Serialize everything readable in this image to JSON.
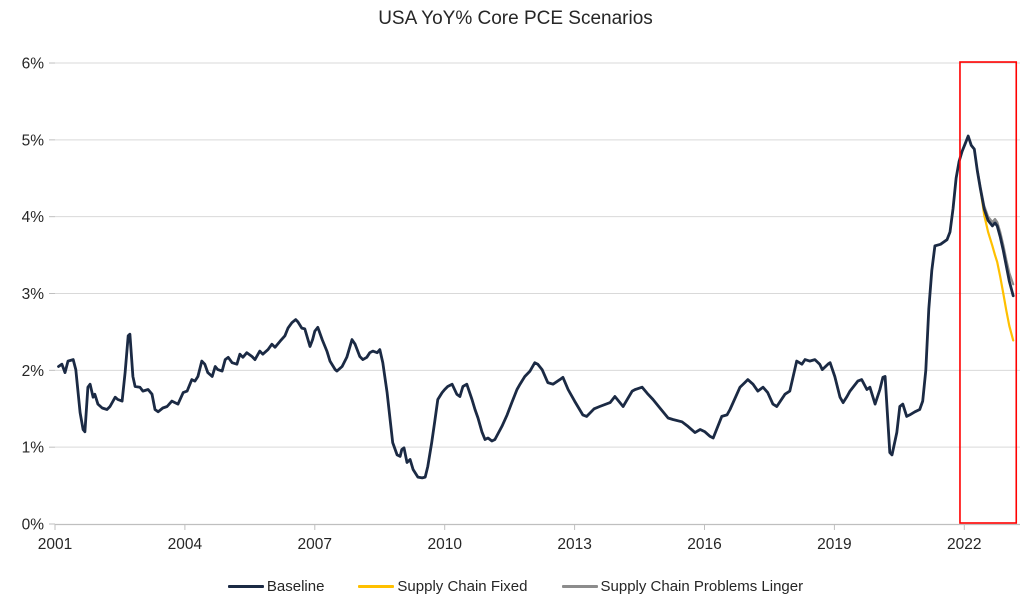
{
  "title": "USA YoY% Core PCE Scenarios",
  "colors": {
    "background": "#FFFFFF",
    "gridline": "#D9D9D9",
    "axis_line": "#BFBFBF",
    "label_text": "#262626",
    "annotation_red": "#FF0000"
  },
  "chart_data": {
    "type": "line",
    "title": "USA YoY% Core PCE Scenarios",
    "xlabel": "",
    "ylabel": "",
    "grid": "horizontal",
    "legend_position": "bottom",
    "x_axis": {
      "range": [
        2001,
        2023.3
      ],
      "ticks": [
        2001,
        2004,
        2007,
        2010,
        2013,
        2016,
        2019,
        2022
      ]
    },
    "y_axis": {
      "range": [
        0,
        6
      ],
      "tick_values": [
        0,
        1,
        2,
        3,
        4,
        5,
        6
      ],
      "tick_labels": [
        "0%",
        "1%",
        "2%",
        "3%",
        "4%",
        "5%",
        "6%"
      ]
    },
    "annotations": [
      {
        "type": "rect",
        "name": "scenario-forecast-highlight",
        "x_range": [
          2021.9,
          2023.2
        ],
        "y_range": [
          0,
          6
        ],
        "stroke": "#FF0000"
      }
    ],
    "series": [
      {
        "name": "Baseline",
        "color": "#1B2A44",
        "width": 2.8,
        "points": [
          [
            2001.08,
            2.05
          ],
          [
            2001.16,
            2.08
          ],
          [
            2001.23,
            1.97
          ],
          [
            2001.3,
            2.12
          ],
          [
            2001.42,
            2.14
          ],
          [
            2001.48,
            2.01
          ],
          [
            2001.58,
            1.45
          ],
          [
            2001.65,
            1.23
          ],
          [
            2001.69,
            1.2
          ],
          [
            2001.76,
            1.78
          ],
          [
            2001.81,
            1.82
          ],
          [
            2001.88,
            1.65
          ],
          [
            2001.92,
            1.69
          ],
          [
            2001.99,
            1.56
          ],
          [
            2002.09,
            1.51
          ],
          [
            2002.2,
            1.49
          ],
          [
            2002.27,
            1.53
          ],
          [
            2002.39,
            1.65
          ],
          [
            2002.45,
            1.62
          ],
          [
            2002.55,
            1.6
          ],
          [
            2002.62,
            1.97
          ],
          [
            2002.69,
            2.45
          ],
          [
            2002.73,
            2.47
          ],
          [
            2002.8,
            1.92
          ],
          [
            2002.85,
            1.79
          ],
          [
            2002.96,
            1.78
          ],
          [
            2003.03,
            1.73
          ],
          [
            2003.15,
            1.75
          ],
          [
            2003.24,
            1.69
          ],
          [
            2003.31,
            1.49
          ],
          [
            2003.38,
            1.46
          ],
          [
            2003.49,
            1.51
          ],
          [
            2003.59,
            1.53
          ],
          [
            2003.7,
            1.6
          ],
          [
            2003.77,
            1.58
          ],
          [
            2003.84,
            1.56
          ],
          [
            2003.96,
            1.71
          ],
          [
            2004.05,
            1.73
          ],
          [
            2004.16,
            1.88
          ],
          [
            2004.23,
            1.86
          ],
          [
            2004.3,
            1.92
          ],
          [
            2004.39,
            2.12
          ],
          [
            2004.46,
            2.08
          ],
          [
            2004.53,
            1.97
          ],
          [
            2004.63,
            1.92
          ],
          [
            2004.7,
            2.05
          ],
          [
            2004.76,
            2.01
          ],
          [
            2004.86,
            1.99
          ],
          [
            2004.93,
            2.14
          ],
          [
            2005.0,
            2.17
          ],
          [
            2005.09,
            2.1
          ],
          [
            2005.2,
            2.08
          ],
          [
            2005.27,
            2.21
          ],
          [
            2005.34,
            2.17
          ],
          [
            2005.43,
            2.23
          ],
          [
            2005.55,
            2.18
          ],
          [
            2005.62,
            2.14
          ],
          [
            2005.73,
            2.25
          ],
          [
            2005.8,
            2.21
          ],
          [
            2005.92,
            2.27
          ],
          [
            2006.01,
            2.34
          ],
          [
            2006.08,
            2.3
          ],
          [
            2006.2,
            2.38
          ],
          [
            2006.31,
            2.45
          ],
          [
            2006.38,
            2.55
          ],
          [
            2006.47,
            2.62
          ],
          [
            2006.56,
            2.66
          ],
          [
            2006.61,
            2.63
          ],
          [
            2006.7,
            2.55
          ],
          [
            2006.77,
            2.54
          ],
          [
            2006.89,
            2.31
          ],
          [
            2006.95,
            2.4
          ],
          [
            2007.0,
            2.51
          ],
          [
            2007.07,
            2.56
          ],
          [
            2007.17,
            2.4
          ],
          [
            2007.28,
            2.25
          ],
          [
            2007.35,
            2.12
          ],
          [
            2007.47,
            2.01
          ],
          [
            2007.51,
            1.99
          ],
          [
            2007.63,
            2.05
          ],
          [
            2007.74,
            2.17
          ],
          [
            2007.86,
            2.4
          ],
          [
            2007.93,
            2.34
          ],
          [
            2008.04,
            2.18
          ],
          [
            2008.11,
            2.14
          ],
          [
            2008.2,
            2.17
          ],
          [
            2008.27,
            2.23
          ],
          [
            2008.34,
            2.25
          ],
          [
            2008.44,
            2.23
          ],
          [
            2008.5,
            2.27
          ],
          [
            2008.57,
            2.1
          ],
          [
            2008.67,
            1.71
          ],
          [
            2008.74,
            1.36
          ],
          [
            2008.8,
            1.06
          ],
          [
            2008.9,
            0.9
          ],
          [
            2008.97,
            0.88
          ],
          [
            2009.01,
            0.97
          ],
          [
            2009.06,
            0.99
          ],
          [
            2009.13,
            0.8
          ],
          [
            2009.2,
            0.84
          ],
          [
            2009.27,
            0.71
          ],
          [
            2009.38,
            0.61
          ],
          [
            2009.48,
            0.6
          ],
          [
            2009.55,
            0.61
          ],
          [
            2009.61,
            0.75
          ],
          [
            2009.7,
            1.06
          ],
          [
            2009.77,
            1.33
          ],
          [
            2009.84,
            1.62
          ],
          [
            2009.94,
            1.71
          ],
          [
            2010.0,
            1.75
          ],
          [
            2010.07,
            1.79
          ],
          [
            2010.17,
            1.82
          ],
          [
            2010.28,
            1.69
          ],
          [
            2010.35,
            1.66
          ],
          [
            2010.42,
            1.79
          ],
          [
            2010.51,
            1.82
          ],
          [
            2010.63,
            1.62
          ],
          [
            2010.7,
            1.49
          ],
          [
            2010.77,
            1.38
          ],
          [
            2010.86,
            1.2
          ],
          [
            2010.93,
            1.1
          ],
          [
            2011.0,
            1.12
          ],
          [
            2011.09,
            1.08
          ],
          [
            2011.16,
            1.1
          ],
          [
            2011.32,
            1.27
          ],
          [
            2011.44,
            1.42
          ],
          [
            2011.55,
            1.58
          ],
          [
            2011.67,
            1.75
          ],
          [
            2011.74,
            1.82
          ],
          [
            2011.85,
            1.92
          ],
          [
            2011.97,
            1.99
          ],
          [
            2012.08,
            2.1
          ],
          [
            2012.15,
            2.08
          ],
          [
            2012.25,
            2.01
          ],
          [
            2012.38,
            1.84
          ],
          [
            2012.5,
            1.82
          ],
          [
            2012.66,
            1.88
          ],
          [
            2012.73,
            1.91
          ],
          [
            2012.85,
            1.75
          ],
          [
            2013.0,
            1.6
          ],
          [
            2013.19,
            1.42
          ],
          [
            2013.28,
            1.4
          ],
          [
            2013.45,
            1.5
          ],
          [
            2013.58,
            1.53
          ],
          [
            2013.82,
            1.58
          ],
          [
            2013.93,
            1.66
          ],
          [
            2014.12,
            1.53
          ],
          [
            2014.33,
            1.73
          ],
          [
            2014.4,
            1.75
          ],
          [
            2014.56,
            1.78
          ],
          [
            2014.68,
            1.7
          ],
          [
            2014.81,
            1.62
          ],
          [
            2014.97,
            1.51
          ],
          [
            2015.16,
            1.38
          ],
          [
            2015.27,
            1.36
          ],
          [
            2015.48,
            1.33
          ],
          [
            2015.62,
            1.27
          ],
          [
            2015.78,
            1.19
          ],
          [
            2015.9,
            1.23
          ],
          [
            2016.01,
            1.2
          ],
          [
            2016.13,
            1.14
          ],
          [
            2016.2,
            1.12
          ],
          [
            2016.4,
            1.4
          ],
          [
            2016.52,
            1.42
          ],
          [
            2016.59,
            1.49
          ],
          [
            2016.82,
            1.78
          ],
          [
            2016.93,
            1.84
          ],
          [
            2017.0,
            1.88
          ],
          [
            2017.12,
            1.82
          ],
          [
            2017.23,
            1.73
          ],
          [
            2017.35,
            1.78
          ],
          [
            2017.46,
            1.71
          ],
          [
            2017.58,
            1.56
          ],
          [
            2017.67,
            1.53
          ],
          [
            2017.86,
            1.69
          ],
          [
            2017.97,
            1.73
          ],
          [
            2018.13,
            2.12
          ],
          [
            2018.25,
            2.08
          ],
          [
            2018.32,
            2.14
          ],
          [
            2018.43,
            2.12
          ],
          [
            2018.55,
            2.14
          ],
          [
            2018.66,
            2.08
          ],
          [
            2018.72,
            2.01
          ],
          [
            2018.85,
            2.08
          ],
          [
            2018.9,
            2.1
          ],
          [
            2019.01,
            1.92
          ],
          [
            2019.13,
            1.65
          ],
          [
            2019.2,
            1.58
          ],
          [
            2019.29,
            1.66
          ],
          [
            2019.36,
            1.73
          ],
          [
            2019.54,
            1.86
          ],
          [
            2019.63,
            1.88
          ],
          [
            2019.75,
            1.75
          ],
          [
            2019.82,
            1.78
          ],
          [
            2019.94,
            1.56
          ],
          [
            2020.05,
            1.75
          ],
          [
            2020.12,
            1.91
          ],
          [
            2020.17,
            1.92
          ],
          [
            2020.28,
            0.93
          ],
          [
            2020.33,
            0.9
          ],
          [
            2020.44,
            1.19
          ],
          [
            2020.51,
            1.53
          ],
          [
            2020.58,
            1.56
          ],
          [
            2020.67,
            1.4
          ],
          [
            2020.74,
            1.42
          ],
          [
            2020.86,
            1.46
          ],
          [
            2020.97,
            1.49
          ],
          [
            2021.04,
            1.6
          ],
          [
            2021.11,
            2.0
          ],
          [
            2021.18,
            2.8
          ],
          [
            2021.25,
            3.3
          ],
          [
            2021.32,
            3.62
          ],
          [
            2021.45,
            3.64
          ],
          [
            2021.6,
            3.7
          ],
          [
            2021.67,
            3.8
          ],
          [
            2021.74,
            4.1
          ],
          [
            2021.81,
            4.5
          ],
          [
            2021.88,
            4.72
          ],
          [
            2021.95,
            4.85
          ],
          [
            2022.02,
            4.95
          ],
          [
            2022.09,
            5.05
          ],
          [
            2022.16,
            4.93
          ],
          [
            2022.23,
            4.88
          ],
          [
            2022.3,
            4.6
          ],
          [
            2022.37,
            4.37
          ],
          [
            2022.46,
            4.1
          ],
          [
            2022.55,
            3.95
          ],
          [
            2022.65,
            3.88
          ],
          [
            2022.71,
            3.92
          ],
          [
            2022.76,
            3.88
          ],
          [
            2022.83,
            3.74
          ],
          [
            2022.9,
            3.56
          ],
          [
            2022.97,
            3.36
          ],
          [
            2023.04,
            3.16
          ],
          [
            2023.13,
            2.97
          ]
        ]
      },
      {
        "name": "Supply Chain Fixed",
        "color": "#FFC000",
        "width": 2.2,
        "points": [
          [
            2022.37,
            4.37
          ],
          [
            2022.46,
            4.02
          ],
          [
            2022.55,
            3.8
          ],
          [
            2022.65,
            3.62
          ],
          [
            2022.71,
            3.5
          ],
          [
            2022.76,
            3.41
          ],
          [
            2022.83,
            3.22
          ],
          [
            2022.9,
            3.0
          ],
          [
            2022.97,
            2.78
          ],
          [
            2023.04,
            2.58
          ],
          [
            2023.13,
            2.39
          ]
        ]
      },
      {
        "name": "Supply Chain Problems Linger",
        "color": "#8C8C8C",
        "width": 2.2,
        "points": [
          [
            2022.3,
            4.62
          ],
          [
            2022.37,
            4.4
          ],
          [
            2022.46,
            4.14
          ],
          [
            2022.55,
            4.0
          ],
          [
            2022.65,
            3.93
          ],
          [
            2022.71,
            3.97
          ],
          [
            2022.76,
            3.93
          ],
          [
            2022.83,
            3.8
          ],
          [
            2022.9,
            3.63
          ],
          [
            2022.97,
            3.44
          ],
          [
            2023.04,
            3.27
          ],
          [
            2023.13,
            3.12
          ]
        ]
      }
    ]
  }
}
